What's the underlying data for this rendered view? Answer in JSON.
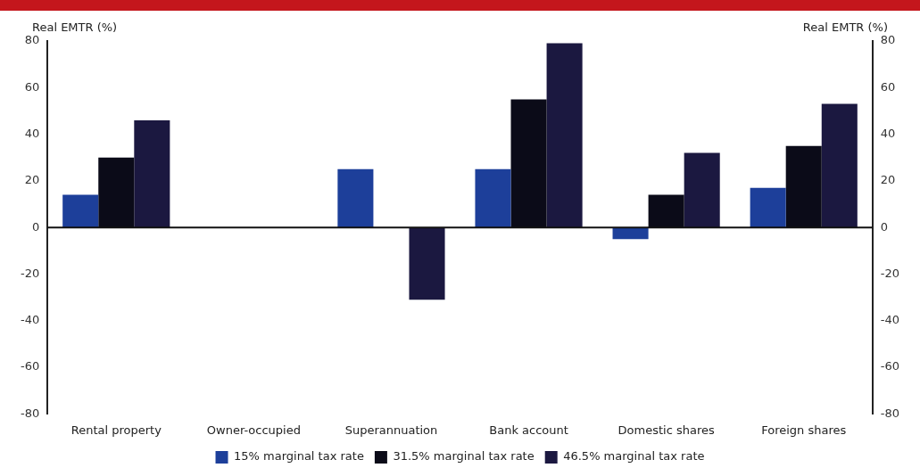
{
  "chart_data": {
    "type": "bar",
    "ylabel": "Real EMTR (%)",
    "y2label": "Real EMTR (%)",
    "categories": [
      "Rental property",
      "Owner-occupied",
      "Superannuation",
      "Bank account",
      "Domestic shares",
      "Foreign shares"
    ],
    "series": [
      {
        "name": "15% marginal tax rate",
        "color": "#1d3f9a",
        "values": [
          14,
          0,
          25,
          25,
          -5,
          17
        ]
      },
      {
        "name": "31.5% marginal tax rate",
        "color": "#0b0b18",
        "values": [
          30,
          0,
          0,
          55,
          14,
          35
        ]
      },
      {
        "name": "46.5% marginal tax rate",
        "color": "#1b1840",
        "values": [
          46,
          0,
          -31,
          79,
          32,
          53
        ]
      }
    ],
    "ylim": [
      -80,
      80
    ],
    "yticks": [
      -80,
      -60,
      -40,
      -20,
      0,
      20,
      40,
      60,
      80
    ],
    "y2lim": [
      -80,
      80
    ],
    "y2ticks": [
      -80,
      -60,
      -40,
      -20,
      0,
      20,
      40,
      60,
      80
    ],
    "legend": "bottom"
  }
}
